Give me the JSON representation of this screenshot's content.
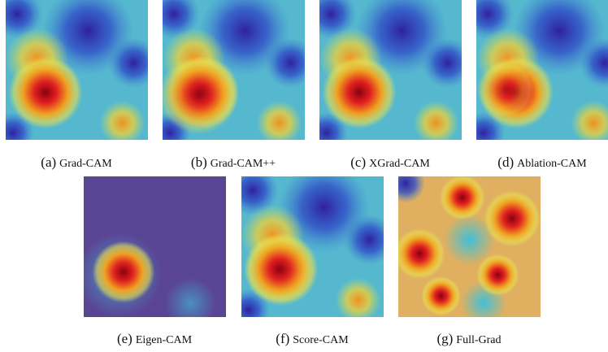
{
  "figure": {
    "panels": [
      {
        "label": "(a)",
        "caption": "Grad-CAM"
      },
      {
        "label": "(b)",
        "caption": "Grad-CAM++"
      },
      {
        "label": "(c)",
        "caption": "XGrad-CAM"
      },
      {
        "label": "(d)",
        "caption": "Ablation-CAM"
      },
      {
        "label": "(e)",
        "caption": "Eigen-CAM"
      },
      {
        "label": "(f)",
        "caption": "Score-CAM"
      },
      {
        "label": "(g)",
        "caption": "Full-Grad"
      }
    ]
  }
}
